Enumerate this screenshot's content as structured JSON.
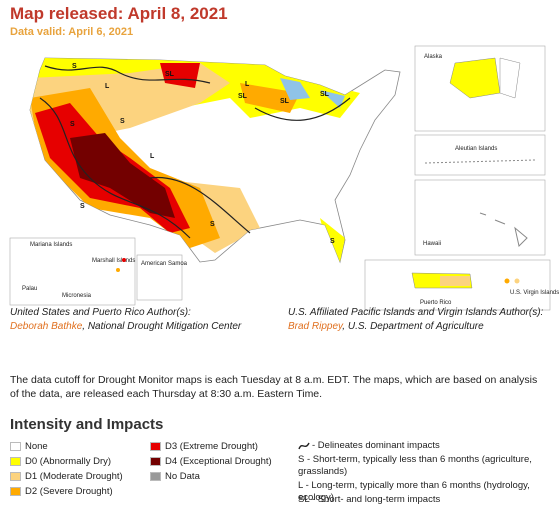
{
  "header": {
    "title": "Map released: April 8, 2021",
    "subtitle": "Data valid: April 6, 2021"
  },
  "map": {
    "inset_labels": [
      "Alaska",
      "Aleutian Islands",
      "Hawaii",
      "Puerto Rico",
      "U.S. Virgin Islands",
      "Mariana Islands",
      "Marshall Islands",
      "Palau",
      "Micronesia",
      "American Samoa"
    ],
    "impact_labels": [
      "S",
      "L",
      "S",
      "SL",
      "L",
      "SL",
      "SL",
      "S",
      "S",
      "S",
      "L",
      "SL",
      "S"
    ]
  },
  "authors": [
    {
      "heading": "United States and Puerto Rico Author(s):",
      "name": "Deborah Bathke",
      "affiliation": ", National Drought Mitigation Center"
    },
    {
      "heading": "U.S. Affiliated Pacific Islands and Virgin Islands Author(s):",
      "name": "Brad Rippey",
      "affiliation": ", U.S. Department of Agriculture"
    }
  ],
  "note": "The data cutoff for Drought Monitor maps is each Tuesday at 8 a.m. EDT. The maps, which are based on analysis of the data, are released each Thursday at 8:30 a.m. Eastern Time.",
  "legend": {
    "title": "Intensity and Impacts",
    "categories": [
      {
        "label": "None",
        "color": "#ffffff"
      },
      {
        "label": "D0 (Abnormally Dry)",
        "color": "#ffff00"
      },
      {
        "label": "D1 (Moderate Drought)",
        "color": "#fcd37f"
      },
      {
        "label": "D2 (Severe Drought)",
        "color": "#ffaa00"
      },
      {
        "label": "D3 (Extreme Drought)",
        "color": "#e60000"
      },
      {
        "label": "D4 (Exceptional Drought)",
        "color": "#730000"
      },
      {
        "label": "No Data",
        "color": "#999999"
      }
    ],
    "impacts": [
      "- Delineates dominant impacts",
      "S - Short-term, typically less than 6 months (agriculture, grasslands)",
      "L - Long-term, typically more than 6 months (hydrology, ecology)",
      "SL - Short- and long-term impacts"
    ]
  }
}
